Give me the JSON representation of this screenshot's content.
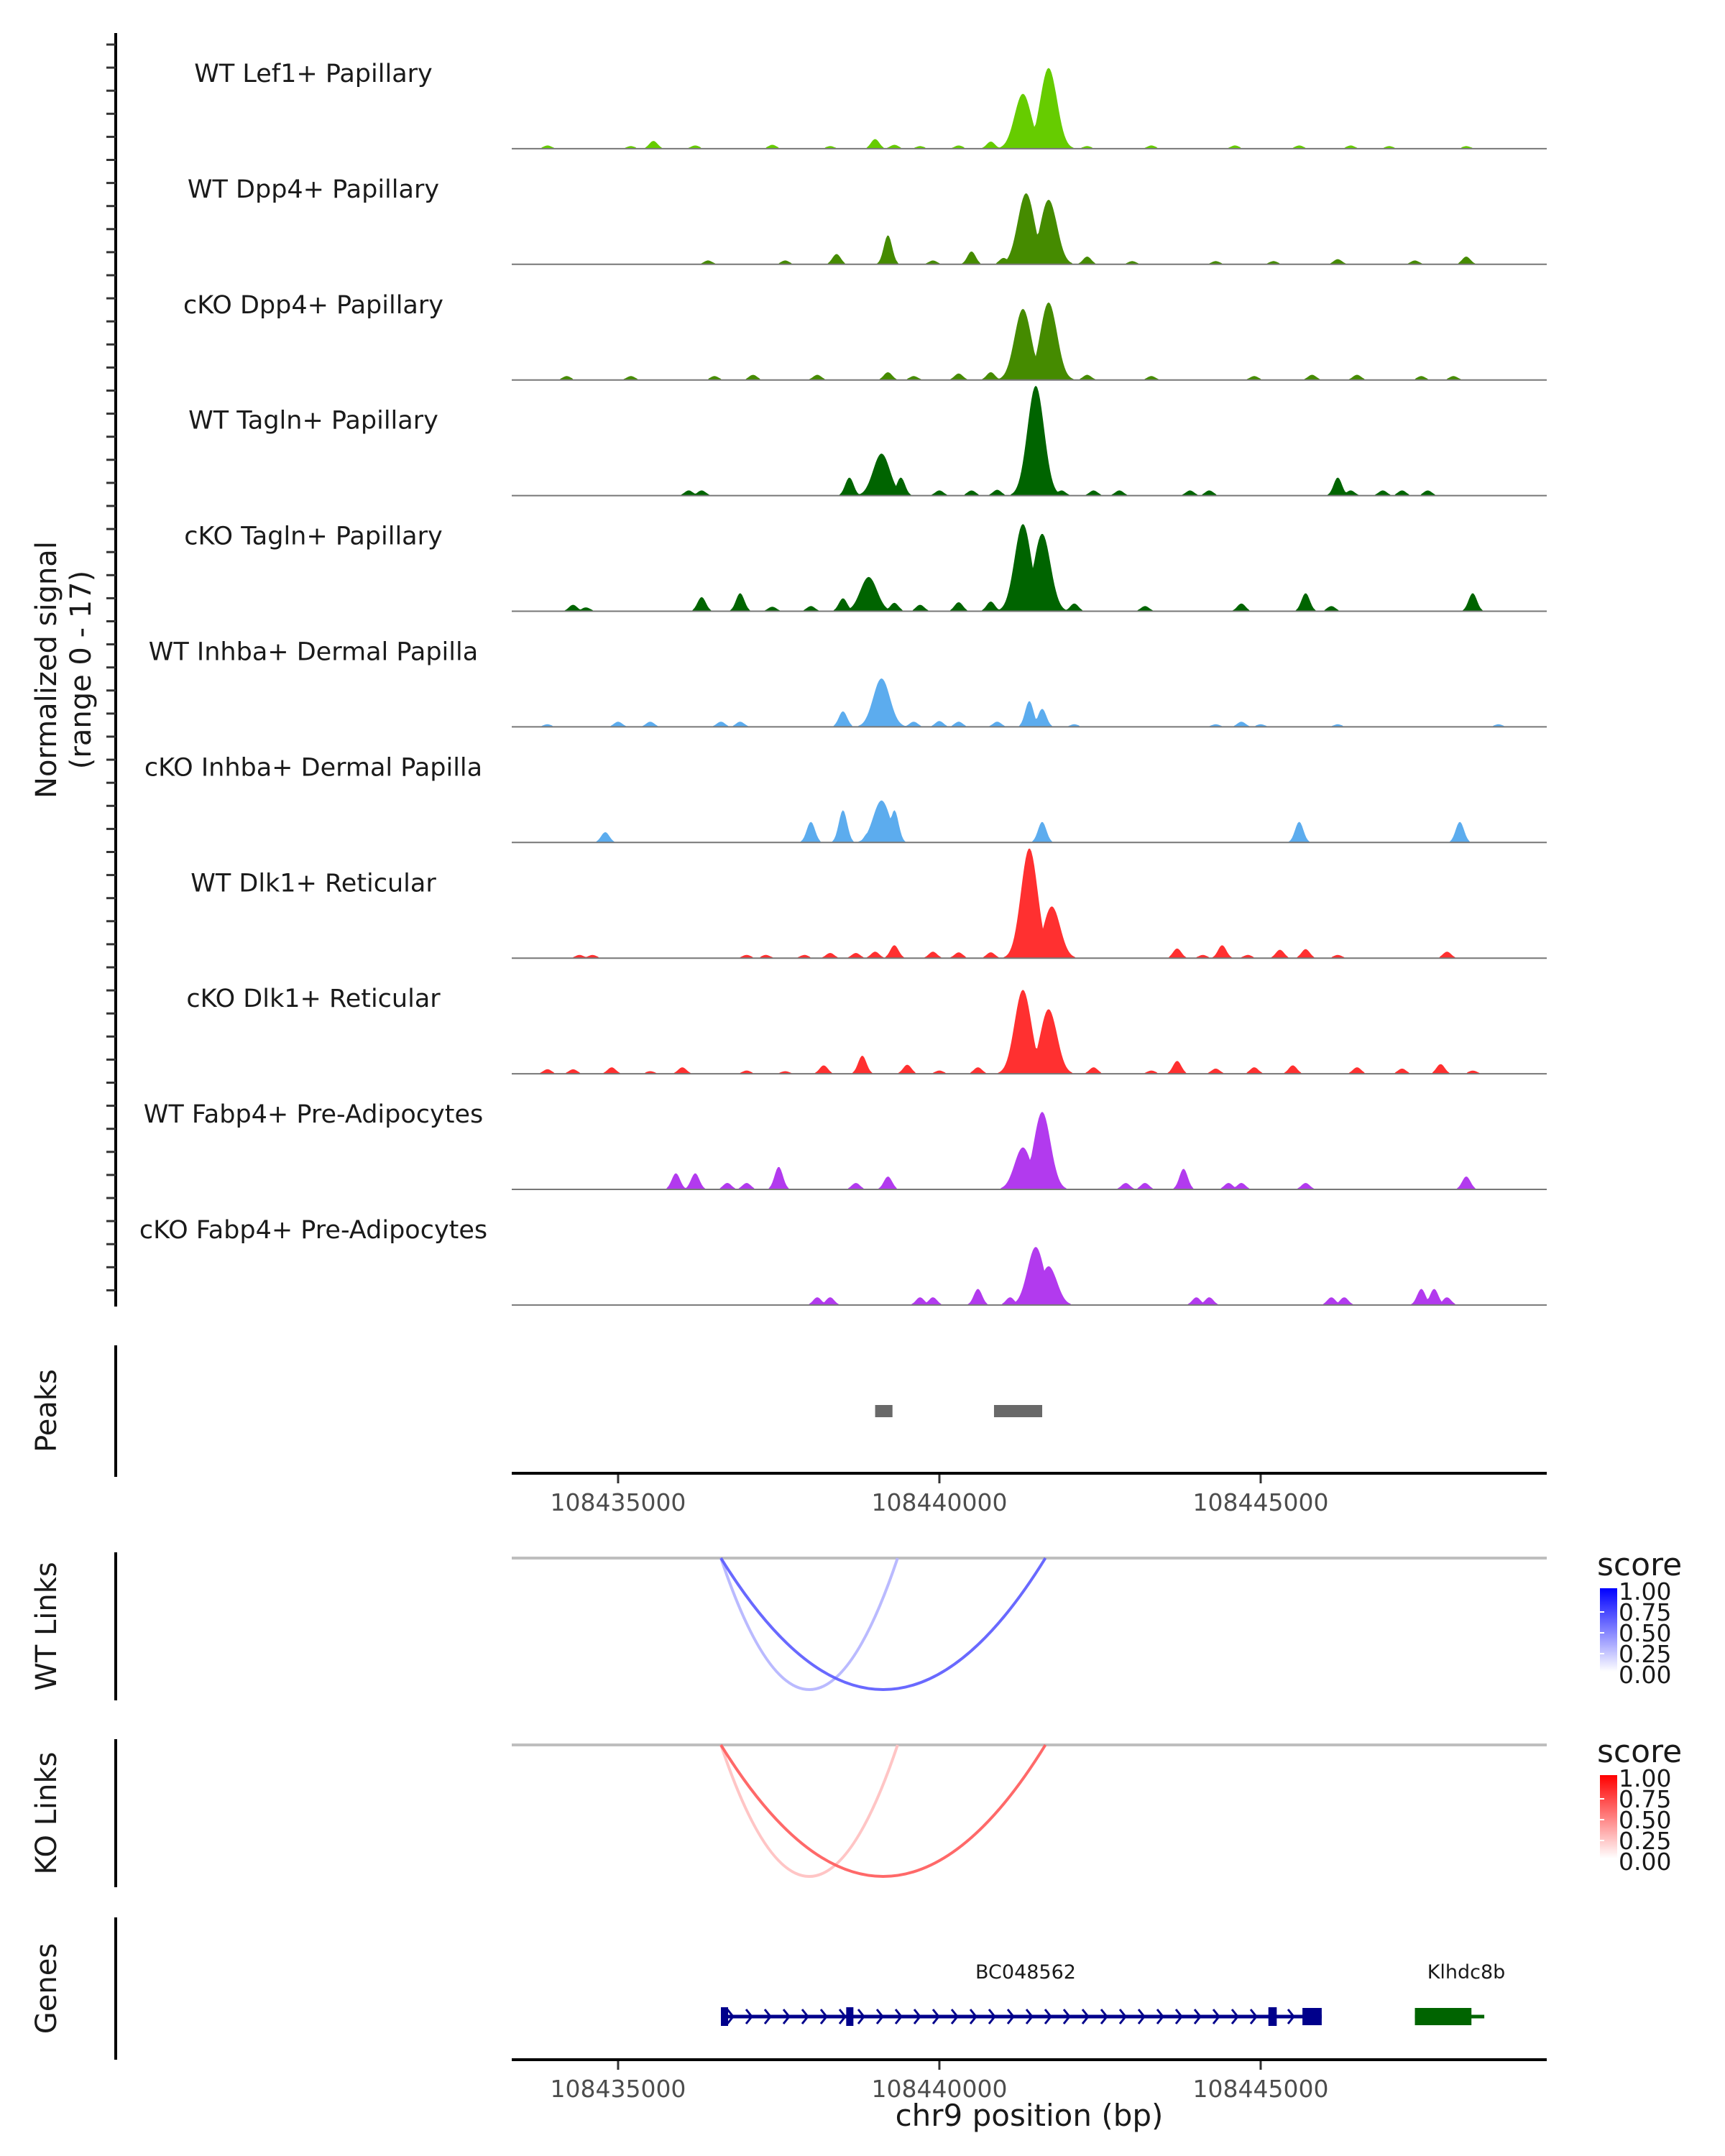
{
  "chart_data": {
    "type": "area",
    "title": "",
    "xlabel": "chr9 position (bp)",
    "xlim": [
      108433345,
      108449452
    ],
    "x_ticks": [
      108435000,
      108440000,
      108445000
    ],
    "x_tick_labels": [
      "108435000",
      "108440000",
      "108445000"
    ],
    "coverage": {
      "ylabel_line1": "Normalized signal",
      "ylabel_line2": "(range 0 - 17)",
      "ylim": [
        0,
        17
      ],
      "tracks": [
        {
          "name": "WT Lef1+ Papillary",
          "color": "#66CC00",
          "peaks": [
            [
              108433900,
              0.5
            ],
            [
              108435550,
              1.2
            ],
            [
              108435200,
              0.4
            ],
            [
              108436200,
              0.5
            ],
            [
              108437400,
              0.6
            ],
            [
              108438300,
              0.4
            ],
            [
              108439000,
              1.5
            ],
            [
              108439300,
              0.6
            ],
            [
              108439700,
              0.4
            ],
            [
              108440300,
              0.5
            ],
            [
              108440800,
              1.1
            ],
            [
              108441300,
              8.5
            ],
            [
              108441700,
              12.5
            ],
            [
              108442300,
              0.4
            ],
            [
              108443300,
              0.5
            ],
            [
              108444600,
              0.5
            ],
            [
              108445600,
              0.5
            ],
            [
              108446400,
              0.5
            ],
            [
              108447000,
              0.4
            ],
            [
              108448200,
              0.4
            ]
          ]
        },
        {
          "name": "WT Dpp4+ Papillary",
          "color": "#458B00",
          "peaks": [
            [
              108436400,
              0.6
            ],
            [
              108437600,
              0.6
            ],
            [
              108438400,
              1.6
            ],
            [
              108439200,
              4.5
            ],
            [
              108439900,
              0.6
            ],
            [
              108440500,
              2.0
            ],
            [
              108441000,
              1.0
            ],
            [
              108441350,
              11.0
            ],
            [
              108441700,
              10.0
            ],
            [
              108442300,
              1.2
            ],
            [
              108443000,
              0.5
            ],
            [
              108444300,
              0.5
            ],
            [
              108445200,
              0.5
            ],
            [
              108446200,
              0.8
            ],
            [
              108447400,
              0.6
            ],
            [
              108448200,
              1.2
            ]
          ]
        },
        {
          "name": "cKO Dpp4+ Papillary",
          "color": "#458B00",
          "peaks": [
            [
              108434200,
              0.6
            ],
            [
              108435200,
              0.6
            ],
            [
              108436500,
              0.6
            ],
            [
              108437100,
              0.8
            ],
            [
              108438100,
              0.8
            ],
            [
              108439200,
              1.2
            ],
            [
              108439600,
              0.6
            ],
            [
              108440300,
              1.0
            ],
            [
              108440800,
              1.2
            ],
            [
              108441300,
              11.0
            ],
            [
              108441700,
              12.0
            ],
            [
              108442300,
              0.8
            ],
            [
              108443300,
              0.6
            ],
            [
              108444900,
              0.6
            ],
            [
              108445800,
              0.8
            ],
            [
              108446500,
              0.8
            ],
            [
              108447500,
              0.6
            ],
            [
              108448000,
              0.6
            ]
          ]
        },
        {
          "name": "WT Tagln+ Papillary",
          "color": "#006400",
          "peaks": [
            [
              108436100,
              0.8
            ],
            [
              108436300,
              0.8
            ],
            [
              108438600,
              2.8
            ],
            [
              108439100,
              6.5
            ],
            [
              108439400,
              2.8
            ],
            [
              108440000,
              0.8
            ],
            [
              108440500,
              0.8
            ],
            [
              108440900,
              0.9
            ],
            [
              108441500,
              17.0
            ],
            [
              108441900,
              0.8
            ],
            [
              108442400,
              0.8
            ],
            [
              108442800,
              0.8
            ],
            [
              108443900,
              0.8
            ],
            [
              108444200,
              0.8
            ],
            [
              108446200,
              2.8
            ],
            [
              108446400,
              0.8
            ],
            [
              108446900,
              0.8
            ],
            [
              108447200,
              0.8
            ],
            [
              108447600,
              0.8
            ]
          ]
        },
        {
          "name": "cKO Tagln+ Papillary",
          "color": "#006400",
          "peaks": [
            [
              108434300,
              1.0
            ],
            [
              108434500,
              0.6
            ],
            [
              108436300,
              2.2
            ],
            [
              108436900,
              2.8
            ],
            [
              108437400,
              0.7
            ],
            [
              108438000,
              0.8
            ],
            [
              108438500,
              2.0
            ],
            [
              108438900,
              5.3
            ],
            [
              108439300,
              1.3
            ],
            [
              108439700,
              1.0
            ],
            [
              108440300,
              1.4
            ],
            [
              108440800,
              1.5
            ],
            [
              108441300,
              13.5
            ],
            [
              108441600,
              12.0
            ],
            [
              108442100,
              1.2
            ],
            [
              108443200,
              0.8
            ],
            [
              108444700,
              1.2
            ],
            [
              108445700,
              2.8
            ],
            [
              108446100,
              0.8
            ],
            [
              108448300,
              2.8
            ]
          ]
        },
        {
          "name": "WT Inhba+ Dermal Papilla",
          "color": "#5CACEE",
          "peaks": [
            [
              108433900,
              0.4
            ],
            [
              108435000,
              0.8
            ],
            [
              108435500,
              0.8
            ],
            [
              108436600,
              0.8
            ],
            [
              108436900,
              0.8
            ],
            [
              108438500,
              2.4
            ],
            [
              108439100,
              7.5
            ],
            [
              108439600,
              0.8
            ],
            [
              108440000,
              0.9
            ],
            [
              108440300,
              0.8
            ],
            [
              108440900,
              0.8
            ],
            [
              108441400,
              4.0
            ],
            [
              108441600,
              2.8
            ],
            [
              108442100,
              0.4
            ],
            [
              108444300,
              0.4
            ],
            [
              108444700,
              0.8
            ],
            [
              108445000,
              0.4
            ],
            [
              108446200,
              0.4
            ],
            [
              108448700,
              0.4
            ]
          ]
        },
        {
          "name": "cKO Inhba+ Dermal Papilla",
          "color": "#5CACEE",
          "peaks": [
            [
              108434800,
              1.6
            ],
            [
              108438000,
              3.2
            ],
            [
              108438500,
              5.0
            ],
            [
              108438900,
              1.6
            ],
            [
              108439100,
              6.5
            ],
            [
              108439300,
              5.0
            ],
            [
              108441600,
              3.2
            ],
            [
              108445600,
              3.2
            ],
            [
              108448100,
              3.2
            ]
          ]
        },
        {
          "name": "WT Dlk1+ Reticular",
          "color": "#FF3030",
          "peaks": [
            [
              108434400,
              0.5
            ],
            [
              108434600,
              0.5
            ],
            [
              108437000,
              0.5
            ],
            [
              108437300,
              0.5
            ],
            [
              108437900,
              0.5
            ],
            [
              108438300,
              0.8
            ],
            [
              108438700,
              0.8
            ],
            [
              108439000,
              1.0
            ],
            [
              108439300,
              2.0
            ],
            [
              108439900,
              1.0
            ],
            [
              108440300,
              0.9
            ],
            [
              108440800,
              0.9
            ],
            [
              108441400,
              17.0
            ],
            [
              108441750,
              8.0
            ],
            [
              108443700,
              1.5
            ],
            [
              108444100,
              0.5
            ],
            [
              108444400,
              2.0
            ],
            [
              108444800,
              0.5
            ],
            [
              108445300,
              1.3
            ],
            [
              108445700,
              1.4
            ],
            [
              108446200,
              0.5
            ],
            [
              108447900,
              1.0
            ]
          ]
        },
        {
          "name": "cKO Dlk1+ Reticular",
          "color": "#FF3030",
          "peaks": [
            [
              108433900,
              0.7
            ],
            [
              108434300,
              0.7
            ],
            [
              108434900,
              1.0
            ],
            [
              108435500,
              0.4
            ],
            [
              108436000,
              1.0
            ],
            [
              108437000,
              0.5
            ],
            [
              108437600,
              0.4
            ],
            [
              108438200,
              1.3
            ],
            [
              108438800,
              2.8
            ],
            [
              108439500,
              1.4
            ],
            [
              108440000,
              0.5
            ],
            [
              108440600,
              1.0
            ],
            [
              108441300,
              13.0
            ],
            [
              108441700,
              10.0
            ],
            [
              108442400,
              1.0
            ],
            [
              108443300,
              0.5
            ],
            [
              108443700,
              2.0
            ],
            [
              108444300,
              0.8
            ],
            [
              108444900,
              1.0
            ],
            [
              108445500,
              1.3
            ],
            [
              108446500,
              1.0
            ],
            [
              108447200,
              0.8
            ],
            [
              108447800,
              1.5
            ],
            [
              108448300,
              0.5
            ]
          ]
        },
        {
          "name": "WT Fabp4+ Pre-Adipocytes",
          "color": "#B23AEE",
          "peaks": [
            [
              108435900,
              2.5
            ],
            [
              108436200,
              2.5
            ],
            [
              108436700,
              1.0
            ],
            [
              108437000,
              1.0
            ],
            [
              108437500,
              3.5
            ],
            [
              108438700,
              1.0
            ],
            [
              108439200,
              2.0
            ],
            [
              108441300,
              6.5
            ],
            [
              108441600,
              12.0
            ],
            [
              108442900,
              1.0
            ],
            [
              108443200,
              1.0
            ],
            [
              108443800,
              3.2
            ],
            [
              108444500,
              1.0
            ],
            [
              108444700,
              1.0
            ],
            [
              108445700,
              1.0
            ],
            [
              108448200,
              2.0
            ]
          ]
        },
        {
          "name": "cKO Fabp4+ Pre-Adipocytes",
          "color": "#B23AEE",
          "peaks": [
            [
              108438100,
              1.2
            ],
            [
              108438300,
              1.2
            ],
            [
              108439700,
              1.2
            ],
            [
              108439900,
              1.2
            ],
            [
              108440600,
              2.5
            ],
            [
              108441100,
              1.2
            ],
            [
              108441500,
              9.0
            ],
            [
              108441700,
              6.0
            ],
            [
              108444000,
              1.2
            ],
            [
              108444200,
              1.2
            ],
            [
              108446100,
              1.2
            ],
            [
              108446300,
              1.2
            ],
            [
              108447500,
              2.5
            ],
            [
              108447700,
              2.5
            ],
            [
              108447900,
              1.2
            ]
          ]
        }
      ]
    },
    "peaks_track": {
      "label": "Peaks",
      "color": "#696969",
      "regions": [
        [
          108439000,
          108439270
        ],
        [
          108440850,
          108441600
        ]
      ]
    },
    "links": [
      {
        "label": "WT Links",
        "legend_title": "score",
        "low_color": "#FFFFFF",
        "high_color": "#0000FF",
        "legend_ticks": [
          "1.00",
          "0.75",
          "0.50",
          "0.25",
          "0.00"
        ],
        "arcs": [
          {
            "start": 108436600,
            "end": 108439350,
            "score": 0.3
          },
          {
            "start": 108436600,
            "end": 108441650,
            "score": 0.65
          }
        ]
      },
      {
        "label": "KO Links",
        "legend_title": "score",
        "low_color": "#FFFFFF",
        "high_color": "#FF0000",
        "legend_ticks": [
          "1.00",
          "0.75",
          "0.50",
          "0.25",
          "0.00"
        ],
        "arcs": [
          {
            "start": 108436600,
            "end": 108439350,
            "score": 0.25
          },
          {
            "start": 108436600,
            "end": 108441650,
            "score": 0.65
          }
        ]
      }
    ],
    "genes_track": {
      "label": "Genes",
      "genes": [
        {
          "name": "BC048562",
          "start": 108436600,
          "end": 108445950,
          "strand": "+",
          "color": "#00008B",
          "exons": [
            [
              108436600,
              108436700
            ],
            [
              108438550,
              108438660
            ],
            [
              108445120,
              108445250
            ],
            [
              108445650,
              108445950
            ]
          ]
        },
        {
          "name": "Klhdc8b",
          "start": 108447400,
          "end": 108448480,
          "strand": "-",
          "color": "#006400",
          "exons": [
            [
              108447400,
              108448280
            ]
          ]
        }
      ]
    }
  }
}
